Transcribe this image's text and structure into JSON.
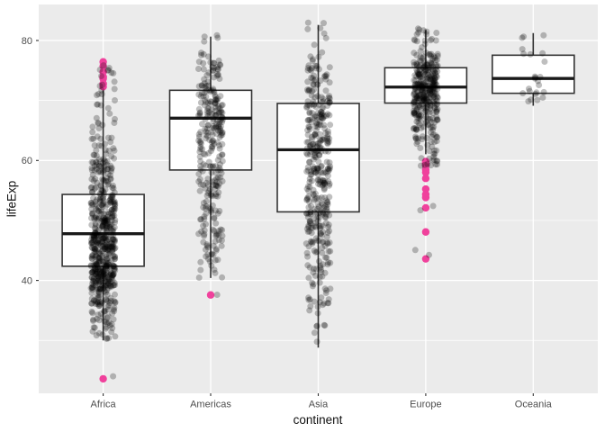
{
  "chart_data": {
    "type": "boxplot",
    "overlay": "jittered-points",
    "title": "",
    "xlabel": "continent",
    "ylabel": "lifeExp",
    "x_categories": [
      "Africa",
      "Americas",
      "Asia",
      "Europe",
      "Oceania"
    ],
    "y_axis": {
      "ticks": [
        40,
        60,
        80
      ],
      "minor_gridlines": [
        30,
        50,
        70
      ],
      "visible_range": [
        21,
        86
      ]
    },
    "legend": "none",
    "grid": "on",
    "series": [
      {
        "name": "Africa",
        "n_points": 624,
        "box": {
          "whisker_low": 30.0,
          "q1": 42.37,
          "median": 47.79,
          "q3": 54.34,
          "whisker_high": 71.95
        },
        "outliers": [
          23.6,
          72.3,
          72.74,
          72.8,
          73.62,
          73.92,
          73.95,
          74.77,
          75.74,
          76.44
        ],
        "jitter_density": [
          [
            23.6,
            24.1,
            0.002
          ],
          [
            30,
            33,
            0.03
          ],
          [
            33,
            36,
            0.05
          ],
          [
            36,
            39,
            0.09
          ],
          [
            39,
            42,
            0.13
          ],
          [
            42,
            45,
            0.15
          ],
          [
            45,
            48,
            0.15
          ],
          [
            48,
            51,
            0.12
          ],
          [
            51,
            54,
            0.1
          ],
          [
            54,
            57,
            0.07
          ],
          [
            57,
            60,
            0.045
          ],
          [
            60,
            64,
            0.04
          ],
          [
            64,
            68,
            0.025
          ],
          [
            68,
            72,
            0.018
          ],
          [
            72,
            76.5,
            0.013
          ]
        ]
      },
      {
        "name": "Americas",
        "n_points": 300,
        "box": {
          "whisker_low": 40.41,
          "q1": 58.41,
          "median": 67.05,
          "q3": 71.7,
          "whisker_high": 80.65
        },
        "outliers": [
          37.58
        ],
        "jitter_density": [
          [
            37.5,
            38,
            0.003
          ],
          [
            40,
            45,
            0.05
          ],
          [
            45,
            50,
            0.07
          ],
          [
            50,
            55,
            0.1
          ],
          [
            55,
            60,
            0.13
          ],
          [
            60,
            64,
            0.13
          ],
          [
            64,
            68,
            0.17
          ],
          [
            68,
            72,
            0.18
          ],
          [
            72,
            76,
            0.12
          ],
          [
            76,
            81,
            0.05
          ]
        ]
      },
      {
        "name": "Asia",
        "n_points": 396,
        "box": {
          "whisker_low": 28.8,
          "q1": 51.43,
          "median": 61.79,
          "q3": 69.51,
          "whisker_high": 82.6
        },
        "outliers": [],
        "jitter_density": [
          [
            28.8,
            32,
            0.01
          ],
          [
            32,
            36,
            0.025
          ],
          [
            36,
            40,
            0.06
          ],
          [
            40,
            44,
            0.08
          ],
          [
            44,
            48,
            0.09
          ],
          [
            48,
            52,
            0.1
          ],
          [
            52,
            56,
            0.1
          ],
          [
            56,
            60,
            0.11
          ],
          [
            60,
            64,
            0.13
          ],
          [
            64,
            68,
            0.15
          ],
          [
            68,
            72,
            0.12
          ],
          [
            72,
            76,
            0.06
          ],
          [
            76,
            83,
            0.045
          ]
        ]
      },
      {
        "name": "Europe",
        "n_points": 360,
        "box": {
          "whisker_low": 61.04,
          "q1": 69.57,
          "median": 72.24,
          "q3": 75.46,
          "whisker_high": 81.76
        },
        "outliers": [
          59.82,
          59.6,
          59.51,
          59.16,
          58.45,
          58.0,
          57.01,
          55.23,
          54.34,
          53.82,
          52.1,
          48.08,
          43.59
        ],
        "jitter_density": [
          [
            43.5,
            50,
            0.006
          ],
          [
            50,
            55,
            0.008
          ],
          [
            55,
            60,
            0.02
          ],
          [
            60,
            63,
            0.03
          ],
          [
            63,
            66,
            0.08
          ],
          [
            66,
            68,
            0.09
          ],
          [
            68,
            70,
            0.14
          ],
          [
            70,
            72,
            0.19
          ],
          [
            72,
            74,
            0.17
          ],
          [
            74,
            76,
            0.14
          ],
          [
            76,
            78,
            0.08
          ],
          [
            78,
            82,
            0.05
          ]
        ]
      },
      {
        "name": "Oceania",
        "n_points": 24,
        "box": {
          "whisker_low": 69.12,
          "q1": 71.2,
          "median": 73.67,
          "q3": 77.55,
          "whisker_high": 81.24
        },
        "outliers": [],
        "jitter_density": [
          [
            69.1,
            70.5,
            0.15
          ],
          [
            70.5,
            72,
            0.2
          ],
          [
            72,
            74,
            0.2
          ],
          [
            74,
            76,
            0.12
          ],
          [
            76,
            78,
            0.12
          ],
          [
            78,
            80,
            0.08
          ],
          [
            80,
            81.3,
            0.13
          ]
        ]
      }
    ],
    "colors": {
      "page_bg": "#FFFFFF",
      "panel_bg": "#EBEBEB",
      "gridline": "#FFFFFF",
      "box_fill": "#FFFFFF",
      "box_border": "#333333",
      "median_line": "#1A1A1A",
      "jitter_point": "#000000",
      "jitter_alpha": 0.25,
      "outlier_point": "#F0419C",
      "tick_label": "#4D4D4D",
      "axis_title": "#111111",
      "tick_mark": "#333333"
    }
  }
}
